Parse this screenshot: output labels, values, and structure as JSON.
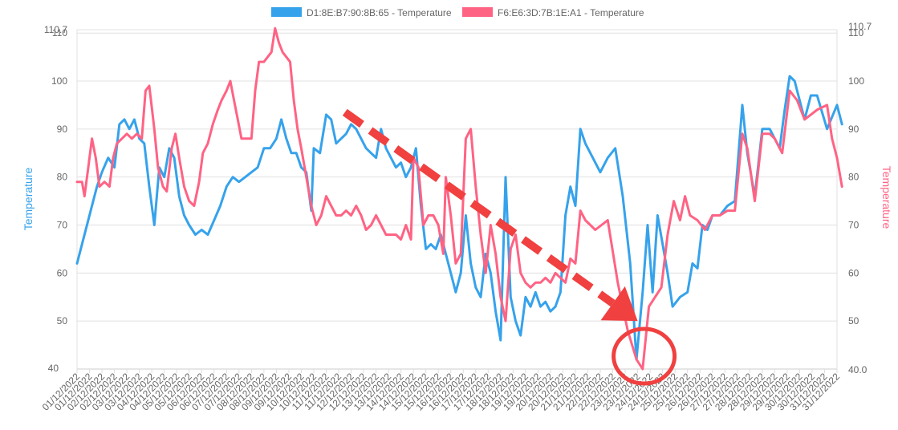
{
  "chart_data": {
    "type": "line",
    "title": "",
    "grid": true,
    "legend_position": "top",
    "y_left": {
      "label": "Temperature",
      "ticks": [
        40,
        50,
        60,
        70,
        80,
        90,
        100,
        110
      ],
      "max_label": "110.7",
      "min_label": "40",
      "range": [
        40,
        110.7
      ],
      "color": "#36a2eb"
    },
    "y_right": {
      "label": "Temperature",
      "ticks": [
        50,
        60,
        70,
        80,
        90,
        100,
        110
      ],
      "max_label": "110.7",
      "min_label": "40.0",
      "range": [
        40,
        110.7
      ],
      "color": "#ff6384"
    },
    "x_range": [
      0,
      61
    ],
    "x_tick_labels": [
      "01/12/2022",
      "01/12/2022",
      "02/12/2022",
      "02/12/2022",
      "03/12/2022",
      "03/12/2022",
      "04/12/2022",
      "04/12/2022",
      "05/12/2022",
      "05/12/2022",
      "06/12/2022",
      "06/12/2022",
      "07/12/2022",
      "07/12/2022",
      "08/12/2022",
      "08/12/2022",
      "09/12/2022",
      "09/12/2022",
      "10/12/2022",
      "10/12/2022",
      "11/12/2022",
      "11/12/2022",
      "12/12/2022",
      "12/12/2022",
      "13/12/2022",
      "13/12/2022",
      "14/12/2022",
      "14/12/2022",
      "15/12/2022",
      "15/12/2022",
      "16/12/2022",
      "16/12/2022",
      "17/12/2022",
      "17/12/2022",
      "18/12/2022",
      "18/12/2022",
      "19/12/2022",
      "19/12/2022",
      "20/12/2022",
      "20/12/2022",
      "21/12/2022",
      "21/12/2022",
      "22/12/2022",
      "22/12/2022",
      "23/12/2022",
      "23/12/2022",
      "24/12/2022",
      "24/12/2022",
      "25/12/2022",
      "25/12/2022",
      "26/12/2022",
      "26/12/2022",
      "27/12/2022",
      "27/12/2022",
      "28/12/2022",
      "28/12/2022",
      "29/12/2022",
      "29/12/2022",
      "30/12/2022",
      "30/12/2022",
      "31/12/2022",
      "31/12/2022"
    ],
    "series": [
      {
        "name": "D1:8E:B7:90:8B:65 - Temperature",
        "color": "#36a2eb",
        "axis": "left",
        "points": [
          [
            0,
            62
          ],
          [
            1,
            72
          ],
          [
            1.6,
            78
          ],
          [
            2,
            81
          ],
          [
            2.5,
            84
          ],
          [
            3,
            82
          ],
          [
            3.4,
            91
          ],
          [
            3.8,
            92
          ],
          [
            4.2,
            90
          ],
          [
            4.6,
            92
          ],
          [
            5,
            88
          ],
          [
            5.4,
            87
          ],
          [
            5.8,
            78
          ],
          [
            6.2,
            70
          ],
          [
            6.6,
            82
          ],
          [
            7,
            80
          ],
          [
            7.4,
            86
          ],
          [
            7.8,
            84
          ],
          [
            8.2,
            76
          ],
          [
            8.6,
            72
          ],
          [
            9,
            70
          ],
          [
            9.5,
            68
          ],
          [
            10,
            69
          ],
          [
            10.5,
            68
          ],
          [
            11,
            71
          ],
          [
            11.5,
            74
          ],
          [
            12,
            78
          ],
          [
            12.5,
            80
          ],
          [
            13,
            79
          ],
          [
            13.5,
            80
          ],
          [
            14,
            81
          ],
          [
            14.5,
            82
          ],
          [
            15,
            86
          ],
          [
            15.5,
            86
          ],
          [
            16,
            88
          ],
          [
            16.4,
            92
          ],
          [
            16.8,
            88
          ],
          [
            17.2,
            85
          ],
          [
            17.6,
            85
          ],
          [
            18,
            82
          ],
          [
            18.4,
            81
          ],
          [
            18.8,
            73
          ],
          [
            19,
            86
          ],
          [
            19.5,
            85
          ],
          [
            20,
            93
          ],
          [
            20.4,
            92
          ],
          [
            20.8,
            87
          ],
          [
            21.2,
            88
          ],
          [
            21.6,
            89
          ],
          [
            22,
            91
          ],
          [
            22.4,
            90
          ],
          [
            22.8,
            88
          ],
          [
            23.2,
            86
          ],
          [
            23.6,
            85
          ],
          [
            24,
            84
          ],
          [
            24.4,
            90
          ],
          [
            24.8,
            86
          ],
          [
            25.2,
            84
          ],
          [
            25.6,
            82
          ],
          [
            26,
            83
          ],
          [
            26.4,
            80
          ],
          [
            26.8,
            82
          ],
          [
            27.2,
            86
          ],
          [
            27.6,
            74
          ],
          [
            28,
            65
          ],
          [
            28.4,
            66
          ],
          [
            28.8,
            65
          ],
          [
            29.2,
            68
          ],
          [
            29.6,
            64
          ],
          [
            30,
            60
          ],
          [
            30.4,
            56
          ],
          [
            30.8,
            60
          ],
          [
            31.2,
            72
          ],
          [
            31.6,
            62
          ],
          [
            32,
            57
          ],
          [
            32.4,
            55
          ],
          [
            32.8,
            64
          ],
          [
            33.2,
            60
          ],
          [
            33.6,
            52
          ],
          [
            34,
            46
          ],
          [
            34.4,
            80
          ],
          [
            34.8,
            55
          ],
          [
            35.2,
            50
          ],
          [
            35.6,
            47
          ],
          [
            36,
            55
          ],
          [
            36.4,
            53
          ],
          [
            36.8,
            56
          ],
          [
            37.2,
            53
          ],
          [
            37.6,
            54
          ],
          [
            38,
            52
          ],
          [
            38.4,
            53
          ],
          [
            38.8,
            56
          ],
          [
            39.2,
            72
          ],
          [
            39.6,
            78
          ],
          [
            40,
            74
          ],
          [
            40.4,
            90
          ],
          [
            40.8,
            87
          ],
          [
            41.4,
            84
          ],
          [
            42,
            81
          ],
          [
            42.6,
            84
          ],
          [
            43.2,
            86
          ],
          [
            43.8,
            76
          ],
          [
            44.4,
            62
          ],
          [
            44.9,
            42
          ],
          [
            45.4,
            56
          ],
          [
            45.8,
            70
          ],
          [
            46.2,
            56
          ],
          [
            46.6,
            72
          ],
          [
            47,
            66
          ],
          [
            47.4,
            60
          ],
          [
            47.8,
            53
          ],
          [
            48.4,
            55
          ],
          [
            49,
            56
          ],
          [
            49.4,
            62
          ],
          [
            49.8,
            61
          ],
          [
            50.2,
            70
          ],
          [
            50.6,
            69
          ],
          [
            51,
            72
          ],
          [
            51.6,
            72
          ],
          [
            52.2,
            74
          ],
          [
            52.8,
            75
          ],
          [
            53.4,
            95
          ],
          [
            53.8,
            85
          ],
          [
            54.4,
            76
          ],
          [
            55,
            90
          ],
          [
            55.6,
            90
          ],
          [
            56,
            88
          ],
          [
            56.4,
            86
          ],
          [
            56.8,
            94
          ],
          [
            57.2,
            101
          ],
          [
            57.6,
            100
          ],
          [
            58.4,
            92
          ],
          [
            58.9,
            97
          ],
          [
            59.4,
            97
          ],
          [
            60.2,
            90
          ],
          [
            61,
            95
          ],
          [
            61.4,
            91
          ]
        ]
      },
      {
        "name": "F6:E6:3D:7B:1E:A1 - Temperature",
        "color": "#ff6384",
        "axis": "right",
        "points": [
          [
            0,
            79
          ],
          [
            0.4,
            79
          ],
          [
            0.6,
            76
          ],
          [
            0.9,
            82
          ],
          [
            1.2,
            88
          ],
          [
            1.5,
            84
          ],
          [
            1.8,
            78
          ],
          [
            2.2,
            79
          ],
          [
            2.6,
            78
          ],
          [
            2.9,
            84
          ],
          [
            3.2,
            87
          ],
          [
            3.6,
            88
          ],
          [
            4,
            89
          ],
          [
            4.4,
            88
          ],
          [
            4.8,
            89
          ],
          [
            5.2,
            88
          ],
          [
            5.5,
            98
          ],
          [
            5.8,
            99
          ],
          [
            6.2,
            90
          ],
          [
            6.5,
            82
          ],
          [
            6.9,
            78
          ],
          [
            7.2,
            77
          ],
          [
            7.6,
            86
          ],
          [
            7.9,
            89
          ],
          [
            8.2,
            84
          ],
          [
            8.6,
            78
          ],
          [
            9,
            75
          ],
          [
            9.4,
            74
          ],
          [
            9.8,
            79
          ],
          [
            10.1,
            85
          ],
          [
            10.5,
            87
          ],
          [
            10.9,
            91
          ],
          [
            11.3,
            94
          ],
          [
            11.6,
            96
          ],
          [
            12,
            98
          ],
          [
            12.3,
            100
          ],
          [
            12.6,
            96
          ],
          [
            12.9,
            92
          ],
          [
            13.2,
            88
          ],
          [
            13.6,
            88
          ],
          [
            14,
            88
          ],
          [
            14.3,
            98
          ],
          [
            14.6,
            104
          ],
          [
            15,
            104
          ],
          [
            15.3,
            105
          ],
          [
            15.6,
            106
          ],
          [
            15.9,
            111
          ],
          [
            16.2,
            108
          ],
          [
            16.5,
            106
          ],
          [
            16.8,
            105
          ],
          [
            17.1,
            104
          ],
          [
            17.4,
            96
          ],
          [
            17.7,
            90
          ],
          [
            18,
            86
          ],
          [
            18.4,
            80
          ],
          [
            18.8,
            74
          ],
          [
            19.2,
            70
          ],
          [
            19.6,
            72
          ],
          [
            20,
            76
          ],
          [
            20.4,
            74
          ],
          [
            20.8,
            72
          ],
          [
            21.2,
            72
          ],
          [
            21.6,
            73
          ],
          [
            22,
            72
          ],
          [
            22.4,
            74
          ],
          [
            22.8,
            72
          ],
          [
            23.2,
            69
          ],
          [
            23.6,
            70
          ],
          [
            24,
            72
          ],
          [
            24.4,
            70
          ],
          [
            24.8,
            68
          ],
          [
            25.2,
            68
          ],
          [
            25.6,
            68
          ],
          [
            26,
            67
          ],
          [
            26.4,
            70
          ],
          [
            26.8,
            67
          ],
          [
            27,
            84
          ],
          [
            27.4,
            82
          ],
          [
            27.8,
            70
          ],
          [
            28.2,
            72
          ],
          [
            28.6,
            72
          ],
          [
            29,
            70
          ],
          [
            29.4,
            64
          ],
          [
            29.6,
            80
          ],
          [
            30,
            72
          ],
          [
            30.4,
            62
          ],
          [
            30.8,
            64
          ],
          [
            31.2,
            88
          ],
          [
            31.6,
            90
          ],
          [
            32,
            78
          ],
          [
            32.4,
            68
          ],
          [
            32.8,
            60
          ],
          [
            33.2,
            70
          ],
          [
            33.6,
            64
          ],
          [
            34,
            55
          ],
          [
            34.4,
            50
          ],
          [
            34.8,
            65
          ],
          [
            35.2,
            68
          ],
          [
            35.6,
            60
          ],
          [
            36,
            58
          ],
          [
            36.4,
            57
          ],
          [
            36.8,
            58
          ],
          [
            37.2,
            58
          ],
          [
            37.6,
            59
          ],
          [
            38,
            58
          ],
          [
            38.4,
            60
          ],
          [
            38.8,
            59
          ],
          [
            39.2,
            58
          ],
          [
            39.6,
            63
          ],
          [
            40,
            62
          ],
          [
            40.4,
            73
          ],
          [
            40.8,
            71
          ],
          [
            41.6,
            69
          ],
          [
            42.6,
            71
          ],
          [
            43.4,
            58
          ],
          [
            44.2,
            48
          ],
          [
            44.9,
            42
          ],
          [
            45.4,
            40
          ],
          [
            45.9,
            53
          ],
          [
            46.4,
            55
          ],
          [
            46.9,
            57
          ],
          [
            47.4,
            68
          ],
          [
            47.9,
            75
          ],
          [
            48.4,
            71
          ],
          [
            48.8,
            76
          ],
          [
            49.2,
            72
          ],
          [
            49.8,
            71
          ],
          [
            50.4,
            69
          ],
          [
            51,
            72
          ],
          [
            51.6,
            72
          ],
          [
            52.2,
            73
          ],
          [
            52.8,
            73
          ],
          [
            53.4,
            89
          ],
          [
            53.8,
            86
          ],
          [
            54.4,
            75
          ],
          [
            55,
            89
          ],
          [
            55.6,
            89
          ],
          [
            56,
            88
          ],
          [
            56.6,
            85
          ],
          [
            57.2,
            98
          ],
          [
            57.8,
            96
          ],
          [
            58.4,
            92
          ],
          [
            58.9,
            93
          ],
          [
            59.4,
            94
          ],
          [
            60.2,
            95
          ],
          [
            60.6,
            88
          ],
          [
            61,
            84
          ],
          [
            61.4,
            78
          ]
        ]
      }
    ]
  },
  "annotations": {
    "arrow_color": "#f04040",
    "circle_color": "#f04040",
    "arrow_from": [
      21.5,
      93.5
    ],
    "arrow_to": [
      45.0,
      50.0
    ],
    "circle_center": [
      45.0,
      43.0
    ]
  }
}
